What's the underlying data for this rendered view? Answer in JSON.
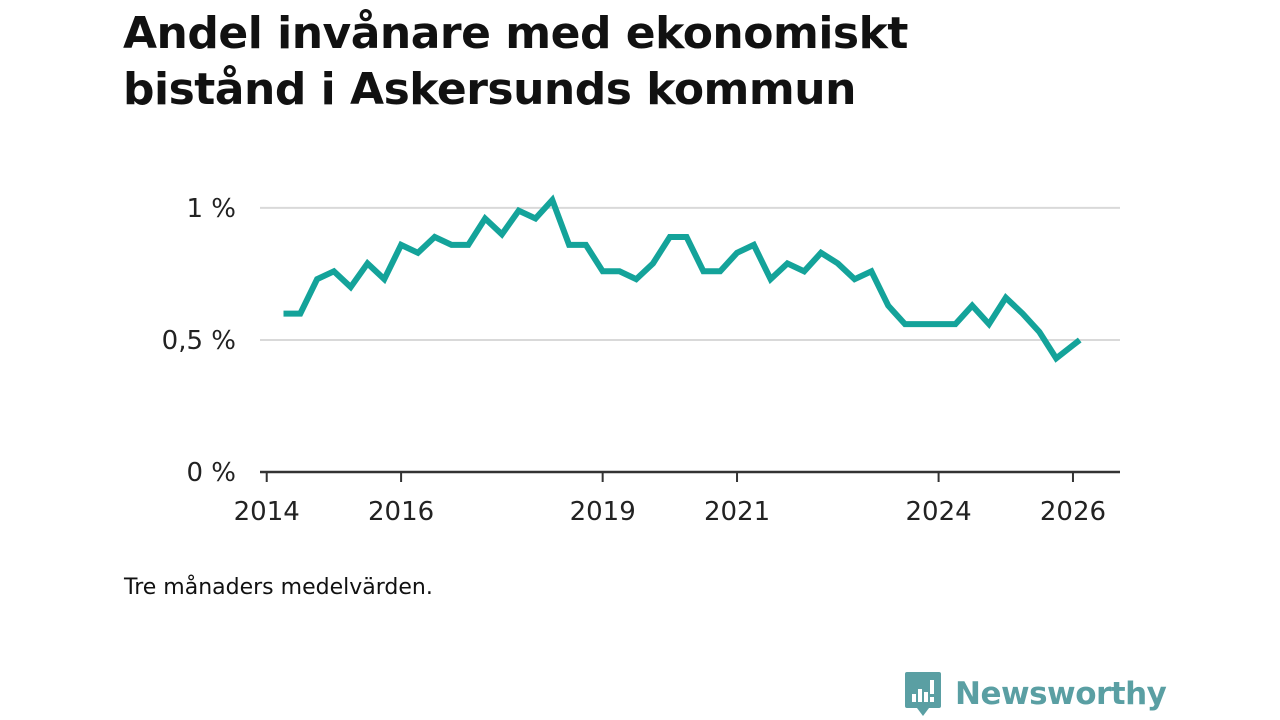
{
  "title": "Andel invånare med ekonomiskt bistånd i Askersunds kommun",
  "note": "Tre månaders medelvärden.",
  "brand": {
    "name": "Newsworthy",
    "icon": "bar-chart-speech-bubble-icon",
    "color": "#5a9fa3"
  },
  "colors": {
    "line": "#14a39a",
    "grid": "#d9d9d9",
    "axis": "#333333",
    "text": "#111111"
  },
  "chart_data": {
    "type": "line",
    "title": "Andel invånare med ekonomiskt bistånd i Askersunds kommun",
    "xlabel": "",
    "ylabel": "",
    "xlim": [
      2013.9,
      2026.7
    ],
    "ylim": [
      0,
      1.03
    ],
    "x_ticks": [
      {
        "value": 2014,
        "label": "2014"
      },
      {
        "value": 2016,
        "label": "2016"
      },
      {
        "value": 2019,
        "label": "2019"
      },
      {
        "value": 2021,
        "label": "2021"
      },
      {
        "value": 2024,
        "label": "2024"
      },
      {
        "value": 2026,
        "label": "2026"
      }
    ],
    "y_ticks": [
      {
        "value": 0,
        "label": "0 %"
      },
      {
        "value": 0.5,
        "label": "0,5 %"
      },
      {
        "value": 1,
        "label": "1 %"
      }
    ],
    "grid": true,
    "legend": "none",
    "series": [
      {
        "color": "#14a39a",
        "x": [
          2014.25,
          2014.5,
          2014.75,
          2015.0,
          2015.25,
          2015.5,
          2015.75,
          2016.0,
          2016.25,
          2016.5,
          2016.75,
          2017.0,
          2017.25,
          2017.5,
          2017.75,
          2018.0,
          2018.25,
          2018.5,
          2018.75,
          2019.0,
          2019.25,
          2019.5,
          2019.75,
          2020.0,
          2020.25,
          2020.5,
          2020.75,
          2021.0,
          2021.25,
          2021.5,
          2021.75,
          2022.0,
          2022.25,
          2022.5,
          2022.75,
          2023.0,
          2023.25,
          2023.5,
          2023.75,
          2024.0,
          2024.25,
          2024.5,
          2024.75,
          2025.0,
          2025.25,
          2025.5,
          2025.75,
          2026.0,
          2026.1
        ],
        "values": [
          0.6,
          0.6,
          0.73,
          0.76,
          0.7,
          0.79,
          0.73,
          0.86,
          0.83,
          0.89,
          0.86,
          0.86,
          0.96,
          0.9,
          0.99,
          0.96,
          1.03,
          0.86,
          0.86,
          0.76,
          0.76,
          0.73,
          0.79,
          0.89,
          0.89,
          0.76,
          0.76,
          0.83,
          0.86,
          0.73,
          0.79,
          0.76,
          0.83,
          0.79,
          0.73,
          0.76,
          0.63,
          0.56,
          0.56,
          0.56,
          0.56,
          0.63,
          0.56,
          0.66,
          0.6,
          0.53,
          0.43,
          0.48,
          0.5
        ]
      }
    ]
  }
}
